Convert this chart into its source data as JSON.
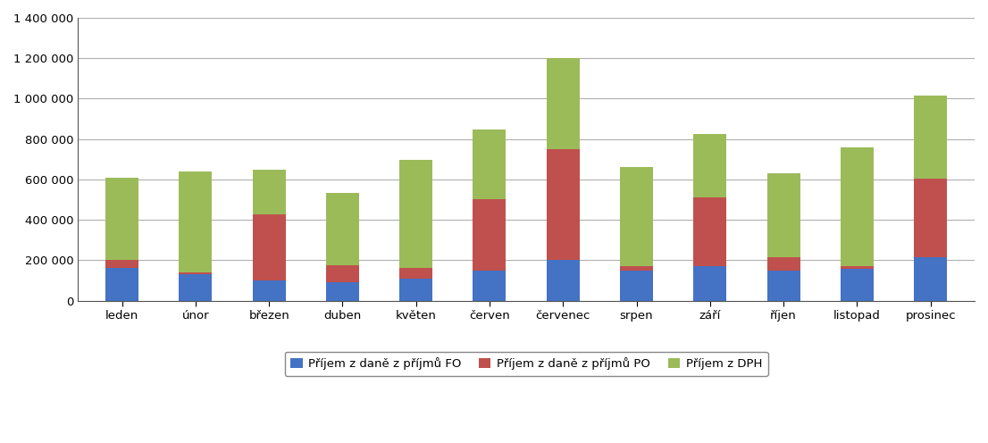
{
  "categories": [
    "leden",
    "únor",
    "březen",
    "duben",
    "květen",
    "červen",
    "červenec",
    "srpen",
    "září",
    "říjen",
    "listopad",
    "prosinec"
  ],
  "fo": [
    160000,
    130000,
    100000,
    90000,
    110000,
    150000,
    200000,
    150000,
    170000,
    150000,
    155000,
    215000
  ],
  "po": [
    40000,
    10000,
    325000,
    85000,
    50000,
    350000,
    550000,
    20000,
    340000,
    65000,
    15000,
    390000
  ],
  "dph": [
    410000,
    500000,
    225000,
    360000,
    535000,
    345000,
    450000,
    490000,
    315000,
    415000,
    590000,
    410000
  ],
  "color_fo": "#4472C4",
  "color_po": "#C0504D",
  "color_dph": "#9BBB59",
  "legend_fo": "Příjem z daně z příjmů FO",
  "legend_po": "Příjem z daně z příjmů PO",
  "legend_dph": "Příjem z DPH",
  "ylim": [
    0,
    1400000
  ],
  "yticks": [
    0,
    200000,
    400000,
    600000,
    800000,
    1000000,
    1200000,
    1400000
  ],
  "background_color": "#ffffff",
  "grid_color": "#b0b0b0",
  "bar_width": 0.45
}
